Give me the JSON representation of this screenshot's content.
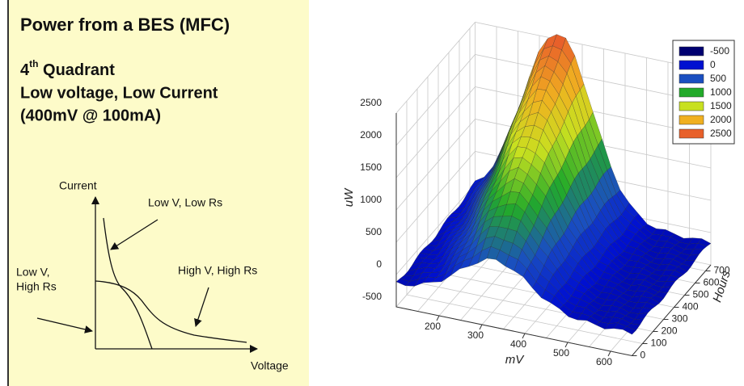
{
  "slide": {
    "title": "Power from a BES (MFC)",
    "quadrant": {
      "number": "4",
      "suffix": "th",
      "label": " Quadrant"
    },
    "lines": [
      "Low voltage, Low Current",
      "(400mV @ 100mA)"
    ]
  },
  "diagram": {
    "y_axis": "Current",
    "x_axis": "Voltage",
    "annotations": [
      {
        "lines": [
          "Low V, Low Rs"
        ]
      },
      {
        "lines": [
          "Low V,",
          "High Rs"
        ]
      },
      {
        "lines": [
          "High V, High Rs"
        ]
      }
    ]
  },
  "plot": {
    "z_label": "uW",
    "x_label": "mV",
    "y_label": "Hours",
    "zticks": [
      -500,
      0,
      500,
      1000,
      1500,
      2000,
      2500
    ],
    "xticks": [
      200,
      300,
      400,
      500,
      600
    ],
    "yticks": [
      0,
      100,
      200,
      300,
      400,
      500,
      600,
      700
    ],
    "legend": [
      {
        "label": "-500",
        "color": "#000070"
      },
      {
        "label": "0",
        "color": "#0010d0"
      },
      {
        "label": "500",
        "color": "#1a4fc0"
      },
      {
        "label": "1000",
        "color": "#22aa2a"
      },
      {
        "label": "1500",
        "color": "#c8e020"
      },
      {
        "label": "2000",
        "color": "#f0b020"
      },
      {
        "label": "2500",
        "color": "#e8602a"
      }
    ]
  }
}
